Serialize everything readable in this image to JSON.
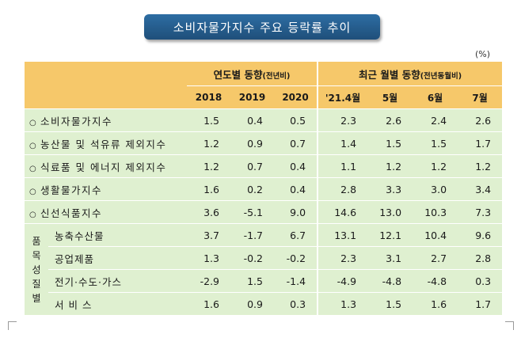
{
  "title": "소비자물가지수 주요 등락률 추이",
  "unit": "(%)",
  "groups": {
    "annual": {
      "label": "연도별 동향",
      "sub": "(전년비)"
    },
    "monthly": {
      "label": "최근 월별 동향",
      "sub": "(전년동월비)"
    }
  },
  "periods": [
    "2018",
    "2019",
    "2020",
    "'21.4월",
    "5월",
    "6월",
    "7월"
  ],
  "rows": [
    {
      "marker": "○",
      "label": "소비자물가지수",
      "values": [
        "1.5",
        "0.4",
        "0.5",
        "2.3",
        "2.6",
        "2.4",
        "2.6"
      ]
    },
    {
      "marker": "○",
      "label": "농산물 및 석유류 제외지수",
      "values": [
        "1.2",
        "0.9",
        "0.7",
        "1.4",
        "1.5",
        "1.5",
        "1.7"
      ]
    },
    {
      "marker": "○",
      "label": "식료품 및 에너지 제외지수",
      "values": [
        "1.2",
        "0.7",
        "0.4",
        "1.1",
        "1.2",
        "1.2",
        "1.2"
      ]
    },
    {
      "marker": "○",
      "label": "생활물가지수",
      "values": [
        "1.6",
        "0.2",
        "0.4",
        "2.8",
        "3.3",
        "3.0",
        "3.4"
      ]
    },
    {
      "marker": "○",
      "label": "신선식품지수",
      "values": [
        "3.6",
        "-5.1",
        "9.0",
        "14.6",
        "13.0",
        "10.3",
        "7.3"
      ]
    }
  ],
  "group_label": [
    "품",
    "목",
    "성",
    "질",
    "별"
  ],
  "sub_rows": [
    {
      "label": "농축수산물",
      "values": [
        "3.7",
        "-1.7",
        "6.7",
        "13.1",
        "12.1",
        "10.4",
        "9.6"
      ]
    },
    {
      "label": "공업제품",
      "values": [
        "1.3",
        "-0.2",
        "-0.2",
        "2.3",
        "3.1",
        "2.7",
        "2.8"
      ]
    },
    {
      "label": "전기·수도·가스",
      "values": [
        "-2.9",
        "1.5",
        "-1.4",
        "-4.9",
        "-4.8",
        "-4.8",
        "0.3"
      ]
    },
    {
      "label": "서 비 스",
      "values": [
        "1.6",
        "0.9",
        "0.3",
        "1.3",
        "1.5",
        "1.6",
        "1.7"
      ]
    }
  ]
}
